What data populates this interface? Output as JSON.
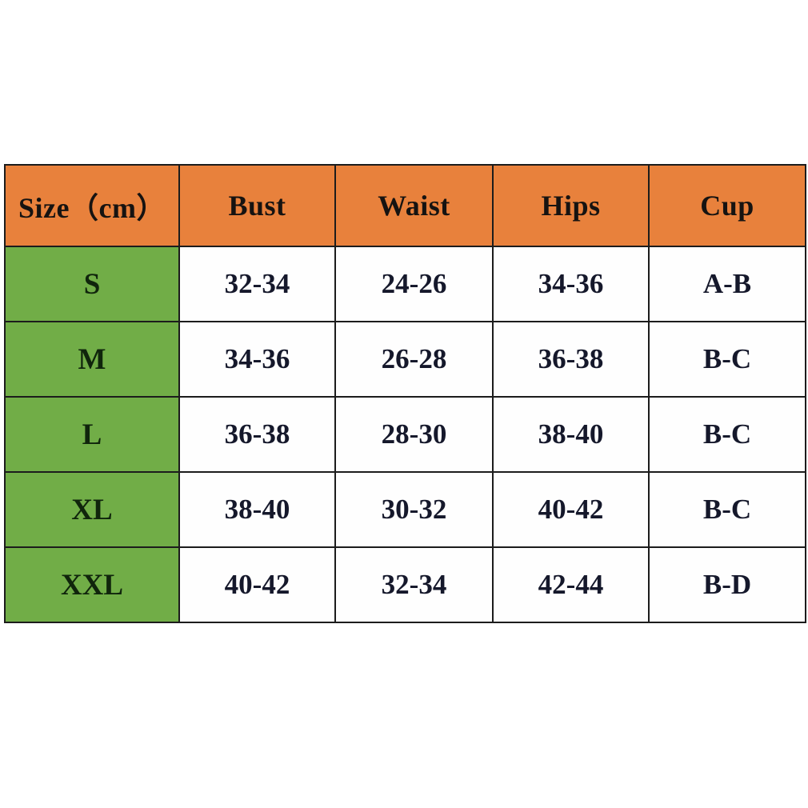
{
  "colors": {
    "page_bg": "#ffffff",
    "header_bg": "#e8813c",
    "size_column_bg": "#71ad47",
    "grid_border": "#1c1c1c",
    "header_text": "#161311",
    "value_text": "#15182b"
  },
  "table": {
    "headers": [
      "Size（cm）",
      "Bust",
      "Waist",
      "Hips",
      "Cup"
    ],
    "rows": [
      {
        "size": "S",
        "bust": "32-34",
        "waist": "24-26",
        "hips": "34-36",
        "cup": "A-B"
      },
      {
        "size": "M",
        "bust": "34-36",
        "waist": "26-28",
        "hips": "36-38",
        "cup": "B-C"
      },
      {
        "size": "L",
        "bust": "36-38",
        "waist": "28-30",
        "hips": "38-40",
        "cup": "B-C"
      },
      {
        "size": "XL",
        "bust": "38-40",
        "waist": "30-32",
        "hips": "40-42",
        "cup": "B-C"
      },
      {
        "size": "XXL",
        "bust": "40-42",
        "waist": "32-34",
        "hips": "42-44",
        "cup": "B-D"
      }
    ]
  },
  "chart_data": {
    "type": "table",
    "title": "",
    "columns": [
      "Size（cm）",
      "Bust",
      "Waist",
      "Hips",
      "Cup"
    ],
    "rows": [
      [
        "S",
        "32-34",
        "24-26",
        "34-36",
        "A-B"
      ],
      [
        "M",
        "34-36",
        "26-28",
        "36-38",
        "B-C"
      ],
      [
        "L",
        "36-38",
        "28-30",
        "38-40",
        "B-C"
      ],
      [
        "XL",
        "38-40",
        "30-32",
        "40-42",
        "B-C"
      ],
      [
        "XXL",
        "40-42",
        "32-34",
        "42-44",
        "B-D"
      ]
    ],
    "notes": "Garment size chart; measurements in inches ranges, header labeled cm; header row orange, size column green"
  }
}
